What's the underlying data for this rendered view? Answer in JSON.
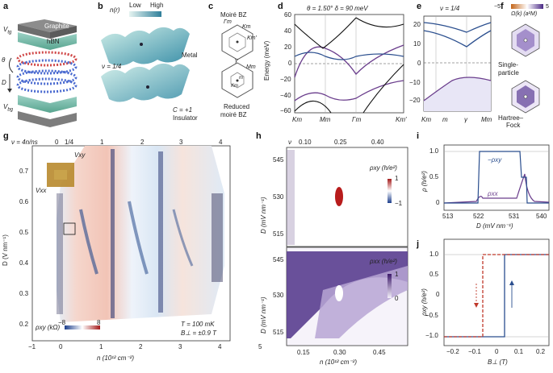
{
  "panels": {
    "a": {
      "letter": "a",
      "v_tg": "V",
      "v_tg_sub": "tg",
      "graphite": "Graphite",
      "hbn": "hBN",
      "theta": "θ",
      "d": "D",
      "v_bg": "V",
      "v_bg_sub": "bg"
    },
    "b": {
      "letter": "b",
      "n_r": "n(r)",
      "low": "Low",
      "high": "High",
      "metal": "Metal",
      "nu": "ν = 1/4",
      "chern": "C = +1",
      "insulator": "Insulator"
    },
    "c": {
      "letter": "c",
      "moire_bz": "Moiré BZ",
      "gamma_m": "Γm",
      "k_m": "Km",
      "k_m_prime": "Km′",
      "gamma": "γ",
      "m_m": "Mm",
      "m_m_small": "m",
      "k_m_small": "Km",
      "reduced_1": "Reduced",
      "reduced_2": "moiré BZ"
    },
    "d": {
      "letter": "d",
      "title": "θ = 1.50°   δ = 90 meV",
      "ylabel": "Energy (meV)",
      "yticks": [
        "60",
        "40",
        "20",
        "0",
        "−20",
        "−40",
        "−60"
      ],
      "xticks": [
        "Km",
        "Mm",
        "Γm",
        "Km′"
      ]
    },
    "e": {
      "letter": "e",
      "title": "ν = 1/4",
      "yticks": [
        "20",
        "10",
        "0",
        "−10",
        "−20"
      ],
      "xticks": [
        "Km",
        "m",
        "γ",
        "Mm"
      ]
    },
    "f": {
      "letter": "f",
      "title": "Ω(k) (a²M)",
      "cmin": "−5",
      "cmax": "5",
      "single_1": "Single-",
      "single_2": "particle",
      "hf_1": "Hartree–",
      "hf_2": "Fock"
    },
    "g": {
      "letter": "g",
      "nu_label": "ν = 4n/ns",
      "top_ticks": [
        "0",
        "1/4",
        "1",
        "2",
        "3",
        "4"
      ],
      "ylabel": "D (V nm⁻¹)",
      "yticks": [
        "0.7",
        "0.6",
        "0.5",
        "0.4",
        "0.3",
        "0.2"
      ],
      "xlabel": "n (10¹² cm⁻²)",
      "xticks": [
        "−1",
        "0",
        "1",
        "2",
        "3",
        "4",
        "5"
      ],
      "vxy": "Vxy",
      "vxx": "Vxx",
      "cbar_label": "ρxy (kΩ)",
      "cbar_min": "−8",
      "cbar_max": "8",
      "temp": "T = 100 mK",
      "field": "B⊥ = ±0.9 T"
    },
    "h": {
      "letter": "h",
      "nu_label": "ν",
      "top_ticks": [
        "0.10",
        "0.25",
        "0.40"
      ],
      "ylabel": "D (mV nm⁻¹)",
      "yticks_top": [
        "545",
        "530",
        "515"
      ],
      "yticks_bottom": [
        "545",
        "530",
        "515"
      ],
      "xlabel": "n (10¹² cm⁻²)",
      "xticks": [
        "0.15",
        "0.30",
        "0.45"
      ],
      "rho_xy": "ρxy (h/e²)",
      "rho_xx": "ρxx (h/e²)",
      "cb1_max": "1",
      "cb1_min": "−1",
      "cb2_max": "1",
      "cb2_min": "0"
    },
    "i": {
      "letter": "i",
      "ylabel": "ρ (h/e²)",
      "yticks": [
        "1.0",
        "0.5",
        "0"
      ],
      "xlabel": "D (mV nm⁻¹)",
      "xticks": [
        "513",
        "522",
        "531",
        "540"
      ],
      "legend_xy": "−ρxy",
      "legend_xx": "ρxx"
    },
    "j": {
      "letter": "j",
      "ylabel": "ρxy (h/e²)",
      "yticks": [
        "1.0",
        "0.5",
        "0",
        "−0.5",
        "−1.0"
      ],
      "xlabel": "B⊥ (T)",
      "xticks": [
        "−0.2",
        "−0.1",
        "0",
        "0.1",
        "0.2"
      ]
    }
  },
  "colors": {
    "purple": "#6a3d8c",
    "blue": "#2a4e8e",
    "red": "#c0392b",
    "teal": "#5aa7b8",
    "navy": "#233f6b"
  }
}
